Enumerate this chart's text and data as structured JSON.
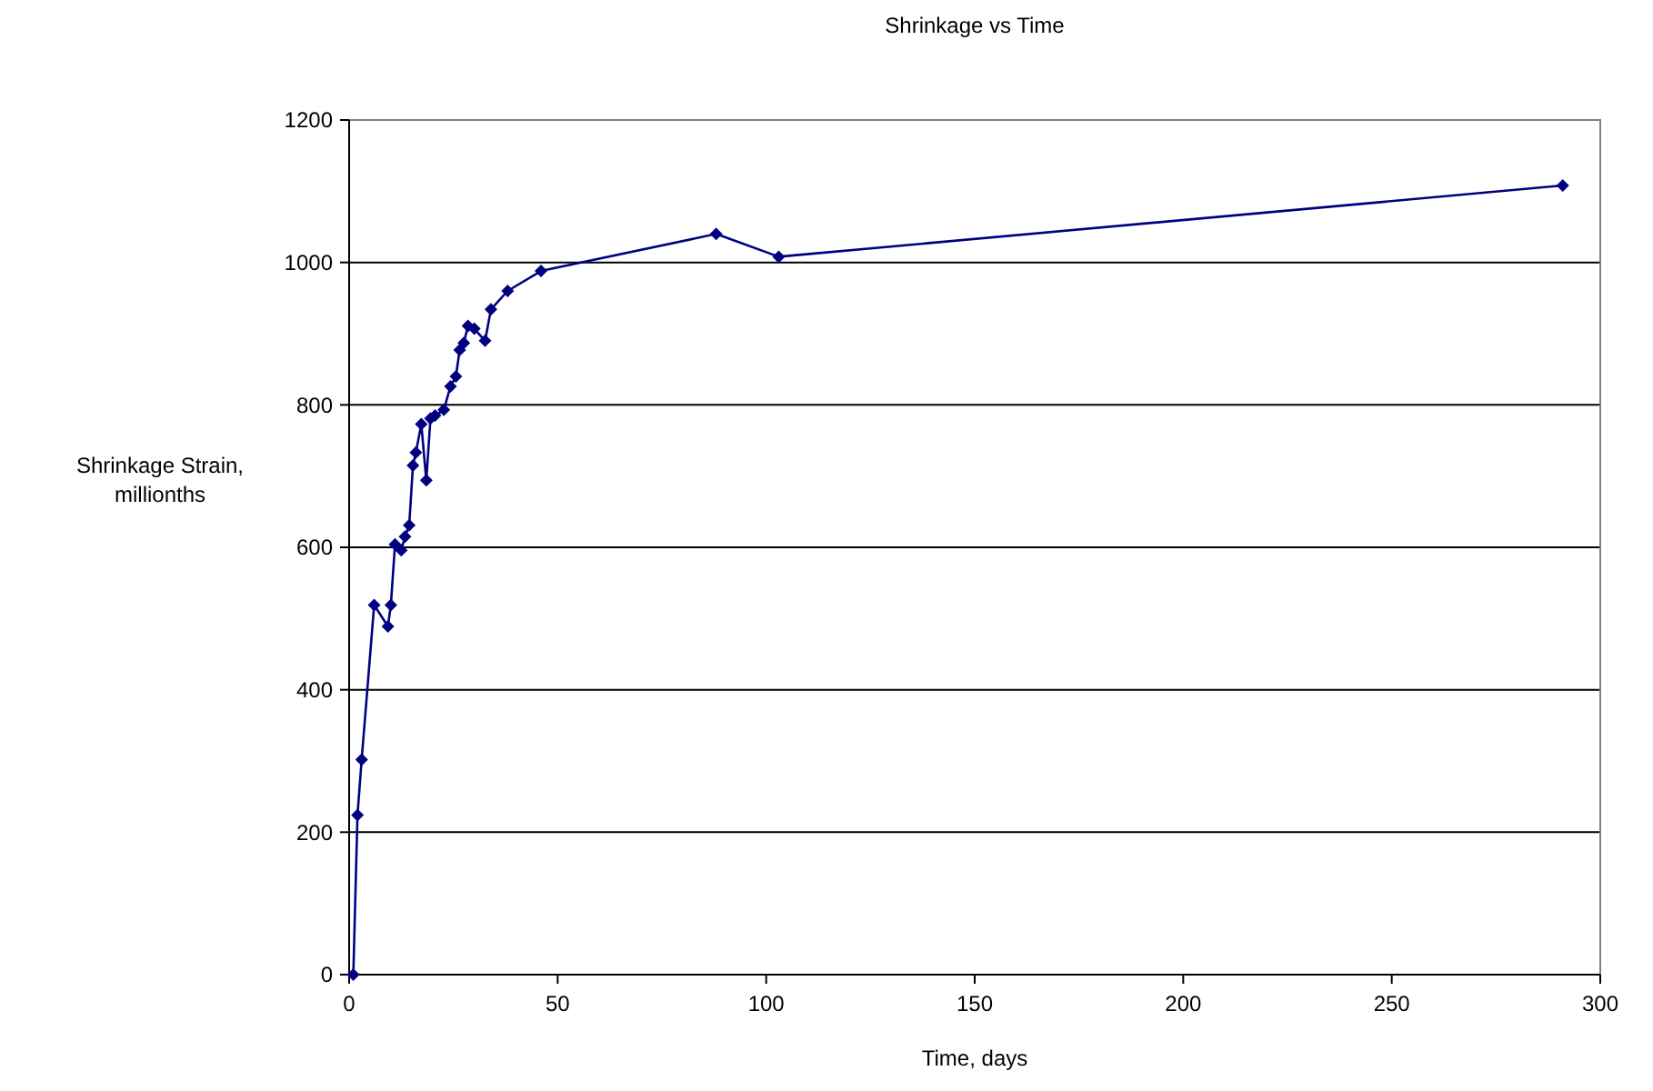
{
  "chart_data": {
    "type": "line",
    "title": "Shrinkage vs Time",
    "xlabel": "Time, days",
    "ylabel": "Shrinkage Strain, millionths",
    "x": [
      1,
      2,
      3,
      6,
      9.3,
      10,
      11,
      12.5,
      13.4,
      14.4,
      15.3,
      16,
      17.3,
      18.5,
      19.5,
      20.6,
      22.7,
      24.3,
      25.6,
      26.5,
      27.5,
      28.5,
      30,
      32.6,
      34,
      38,
      46,
      88,
      103,
      291
    ],
    "series": [
      {
        "color": "#000080",
        "values": [
          0,
          224,
          302,
          519,
          489,
          519,
          604,
          596,
          615,
          631,
          715,
          733,
          773,
          694,
          781,
          785,
          793,
          826,
          840,
          877,
          887,
          911,
          907,
          890,
          934,
          960,
          988,
          1040,
          1008,
          1108
        ]
      }
    ],
    "xlim": [
      0,
      300
    ],
    "xticks": [
      0,
      50,
      100,
      150,
      200,
      250,
      300
    ],
    "ylim": [
      0,
      1200
    ],
    "yticks": [
      0,
      200,
      400,
      600,
      800,
      1000,
      1200
    ],
    "grid": "y",
    "marker": "diamond",
    "line_style": "solid"
  }
}
